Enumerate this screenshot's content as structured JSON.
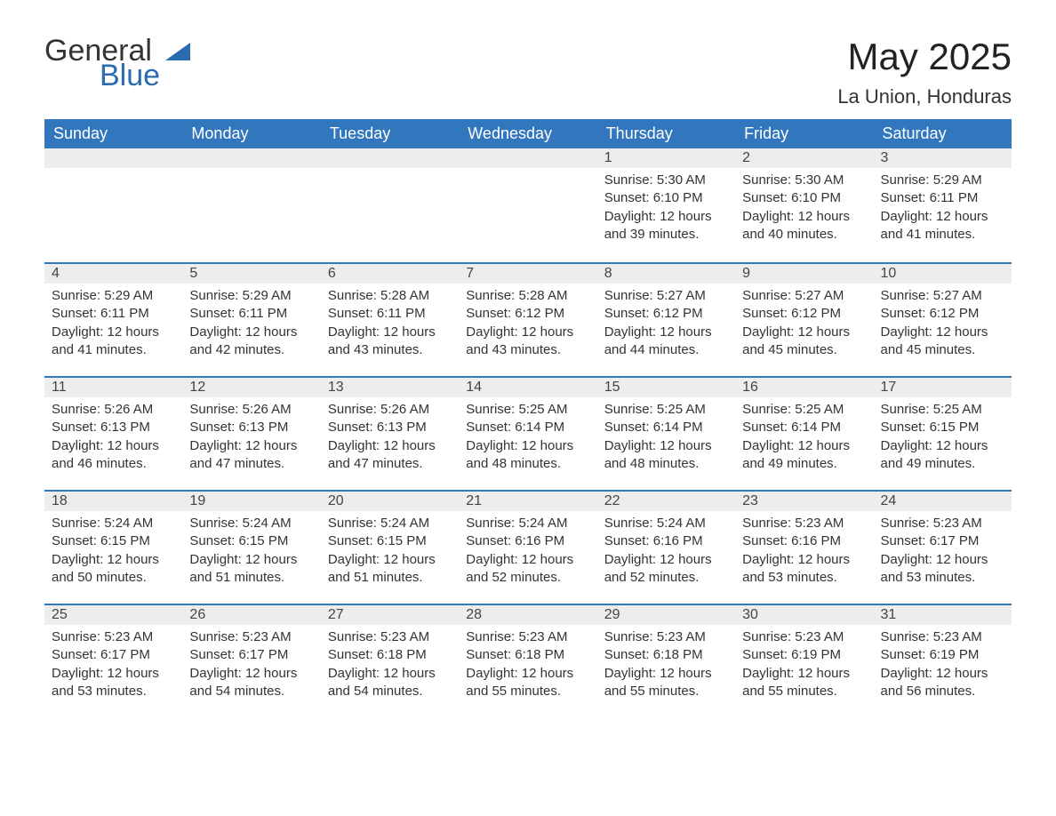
{
  "logo": {
    "word1": "General",
    "word2": "Blue"
  },
  "title": "May 2025",
  "location": "La Union, Honduras",
  "colors": {
    "header_bg": "#3277bd",
    "header_fg": "#ffffff",
    "daynum_bg": "#ededed",
    "day_border": "#3277bd",
    "text": "#333333",
    "logo_blue": "#2b6cb0"
  },
  "weekdays": [
    "Sunday",
    "Monday",
    "Tuesday",
    "Wednesday",
    "Thursday",
    "Friday",
    "Saturday"
  ],
  "weeks": [
    [
      null,
      null,
      null,
      null,
      {
        "d": "1",
        "sr": "5:30 AM",
        "ss": "6:10 PM",
        "dl": "12 hours and 39 minutes."
      },
      {
        "d": "2",
        "sr": "5:30 AM",
        "ss": "6:10 PM",
        "dl": "12 hours and 40 minutes."
      },
      {
        "d": "3",
        "sr": "5:29 AM",
        "ss": "6:11 PM",
        "dl": "12 hours and 41 minutes."
      }
    ],
    [
      {
        "d": "4",
        "sr": "5:29 AM",
        "ss": "6:11 PM",
        "dl": "12 hours and 41 minutes."
      },
      {
        "d": "5",
        "sr": "5:29 AM",
        "ss": "6:11 PM",
        "dl": "12 hours and 42 minutes."
      },
      {
        "d": "6",
        "sr": "5:28 AM",
        "ss": "6:11 PM",
        "dl": "12 hours and 43 minutes."
      },
      {
        "d": "7",
        "sr": "5:28 AM",
        "ss": "6:12 PM",
        "dl": "12 hours and 43 minutes."
      },
      {
        "d": "8",
        "sr": "5:27 AM",
        "ss": "6:12 PM",
        "dl": "12 hours and 44 minutes."
      },
      {
        "d": "9",
        "sr": "5:27 AM",
        "ss": "6:12 PM",
        "dl": "12 hours and 45 minutes."
      },
      {
        "d": "10",
        "sr": "5:27 AM",
        "ss": "6:12 PM",
        "dl": "12 hours and 45 minutes."
      }
    ],
    [
      {
        "d": "11",
        "sr": "5:26 AM",
        "ss": "6:13 PM",
        "dl": "12 hours and 46 minutes."
      },
      {
        "d": "12",
        "sr": "5:26 AM",
        "ss": "6:13 PM",
        "dl": "12 hours and 47 minutes."
      },
      {
        "d": "13",
        "sr": "5:26 AM",
        "ss": "6:13 PM",
        "dl": "12 hours and 47 minutes."
      },
      {
        "d": "14",
        "sr": "5:25 AM",
        "ss": "6:14 PM",
        "dl": "12 hours and 48 minutes."
      },
      {
        "d": "15",
        "sr": "5:25 AM",
        "ss": "6:14 PM",
        "dl": "12 hours and 48 minutes."
      },
      {
        "d": "16",
        "sr": "5:25 AM",
        "ss": "6:14 PM",
        "dl": "12 hours and 49 minutes."
      },
      {
        "d": "17",
        "sr": "5:25 AM",
        "ss": "6:15 PM",
        "dl": "12 hours and 49 minutes."
      }
    ],
    [
      {
        "d": "18",
        "sr": "5:24 AM",
        "ss": "6:15 PM",
        "dl": "12 hours and 50 minutes."
      },
      {
        "d": "19",
        "sr": "5:24 AM",
        "ss": "6:15 PM",
        "dl": "12 hours and 51 minutes."
      },
      {
        "d": "20",
        "sr": "5:24 AM",
        "ss": "6:15 PM",
        "dl": "12 hours and 51 minutes."
      },
      {
        "d": "21",
        "sr": "5:24 AM",
        "ss": "6:16 PM",
        "dl": "12 hours and 52 minutes."
      },
      {
        "d": "22",
        "sr": "5:24 AM",
        "ss": "6:16 PM",
        "dl": "12 hours and 52 minutes."
      },
      {
        "d": "23",
        "sr": "5:23 AM",
        "ss": "6:16 PM",
        "dl": "12 hours and 53 minutes."
      },
      {
        "d": "24",
        "sr": "5:23 AM",
        "ss": "6:17 PM",
        "dl": "12 hours and 53 minutes."
      }
    ],
    [
      {
        "d": "25",
        "sr": "5:23 AM",
        "ss": "6:17 PM",
        "dl": "12 hours and 53 minutes."
      },
      {
        "d": "26",
        "sr": "5:23 AM",
        "ss": "6:17 PM",
        "dl": "12 hours and 54 minutes."
      },
      {
        "d": "27",
        "sr": "5:23 AM",
        "ss": "6:18 PM",
        "dl": "12 hours and 54 minutes."
      },
      {
        "d": "28",
        "sr": "5:23 AM",
        "ss": "6:18 PM",
        "dl": "12 hours and 55 minutes."
      },
      {
        "d": "29",
        "sr": "5:23 AM",
        "ss": "6:18 PM",
        "dl": "12 hours and 55 minutes."
      },
      {
        "d": "30",
        "sr": "5:23 AM",
        "ss": "6:19 PM",
        "dl": "12 hours and 55 minutes."
      },
      {
        "d": "31",
        "sr": "5:23 AM",
        "ss": "6:19 PM",
        "dl": "12 hours and 56 minutes."
      }
    ]
  ],
  "labels": {
    "sunrise": "Sunrise: ",
    "sunset": "Sunset: ",
    "daylight": "Daylight: "
  }
}
